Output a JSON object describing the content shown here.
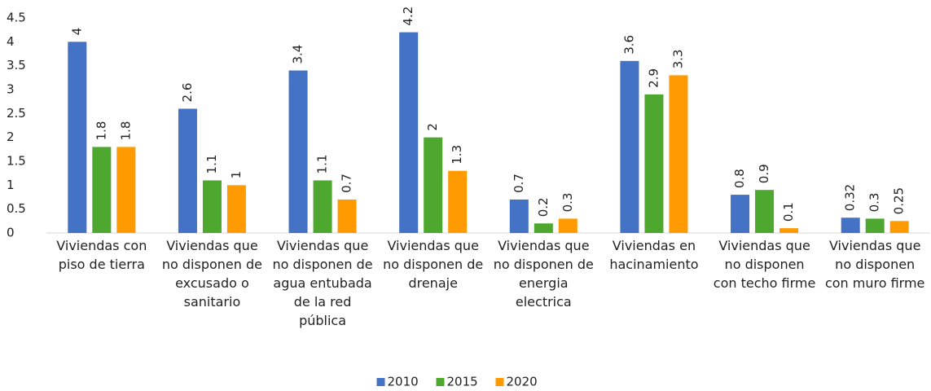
{
  "chart_data": {
    "type": "bar",
    "categories": [
      "Viviendas con piso de tierra",
      "Viviendas que no disponen de excusado o sanitario",
      "Viviendas que no disponen de agua entubada de la red pública",
      "Viviendas que no disponen de drenaje",
      "Viviendas que no disponen de energia electrica",
      "Viviendas en hacinamiento",
      "Viviendas que no disponen con techo firme",
      "Viviendas que no disponen con muro firme"
    ],
    "series": [
      {
        "name": "2010",
        "color": "#4472C4",
        "values": [
          4,
          2.6,
          3.4,
          4.2,
          0.7,
          3.6,
          0.8,
          0.32
        ]
      },
      {
        "name": "2015",
        "color": "#4EA72E",
        "values": [
          1.8,
          1.1,
          1.1,
          2,
          0.2,
          2.9,
          0.9,
          0.3
        ]
      },
      {
        "name": "2020",
        "color": "#FF9A00",
        "values": [
          1.8,
          1,
          0.7,
          1.3,
          0.3,
          3.3,
          0.1,
          0.25
        ]
      }
    ],
    "ylim": [
      0,
      4.5
    ],
    "yticks": [
      0,
      0.5,
      1,
      1.5,
      2,
      2.5,
      3,
      3.5,
      4,
      4.5
    ],
    "grid": false,
    "legend": "bottom"
  }
}
